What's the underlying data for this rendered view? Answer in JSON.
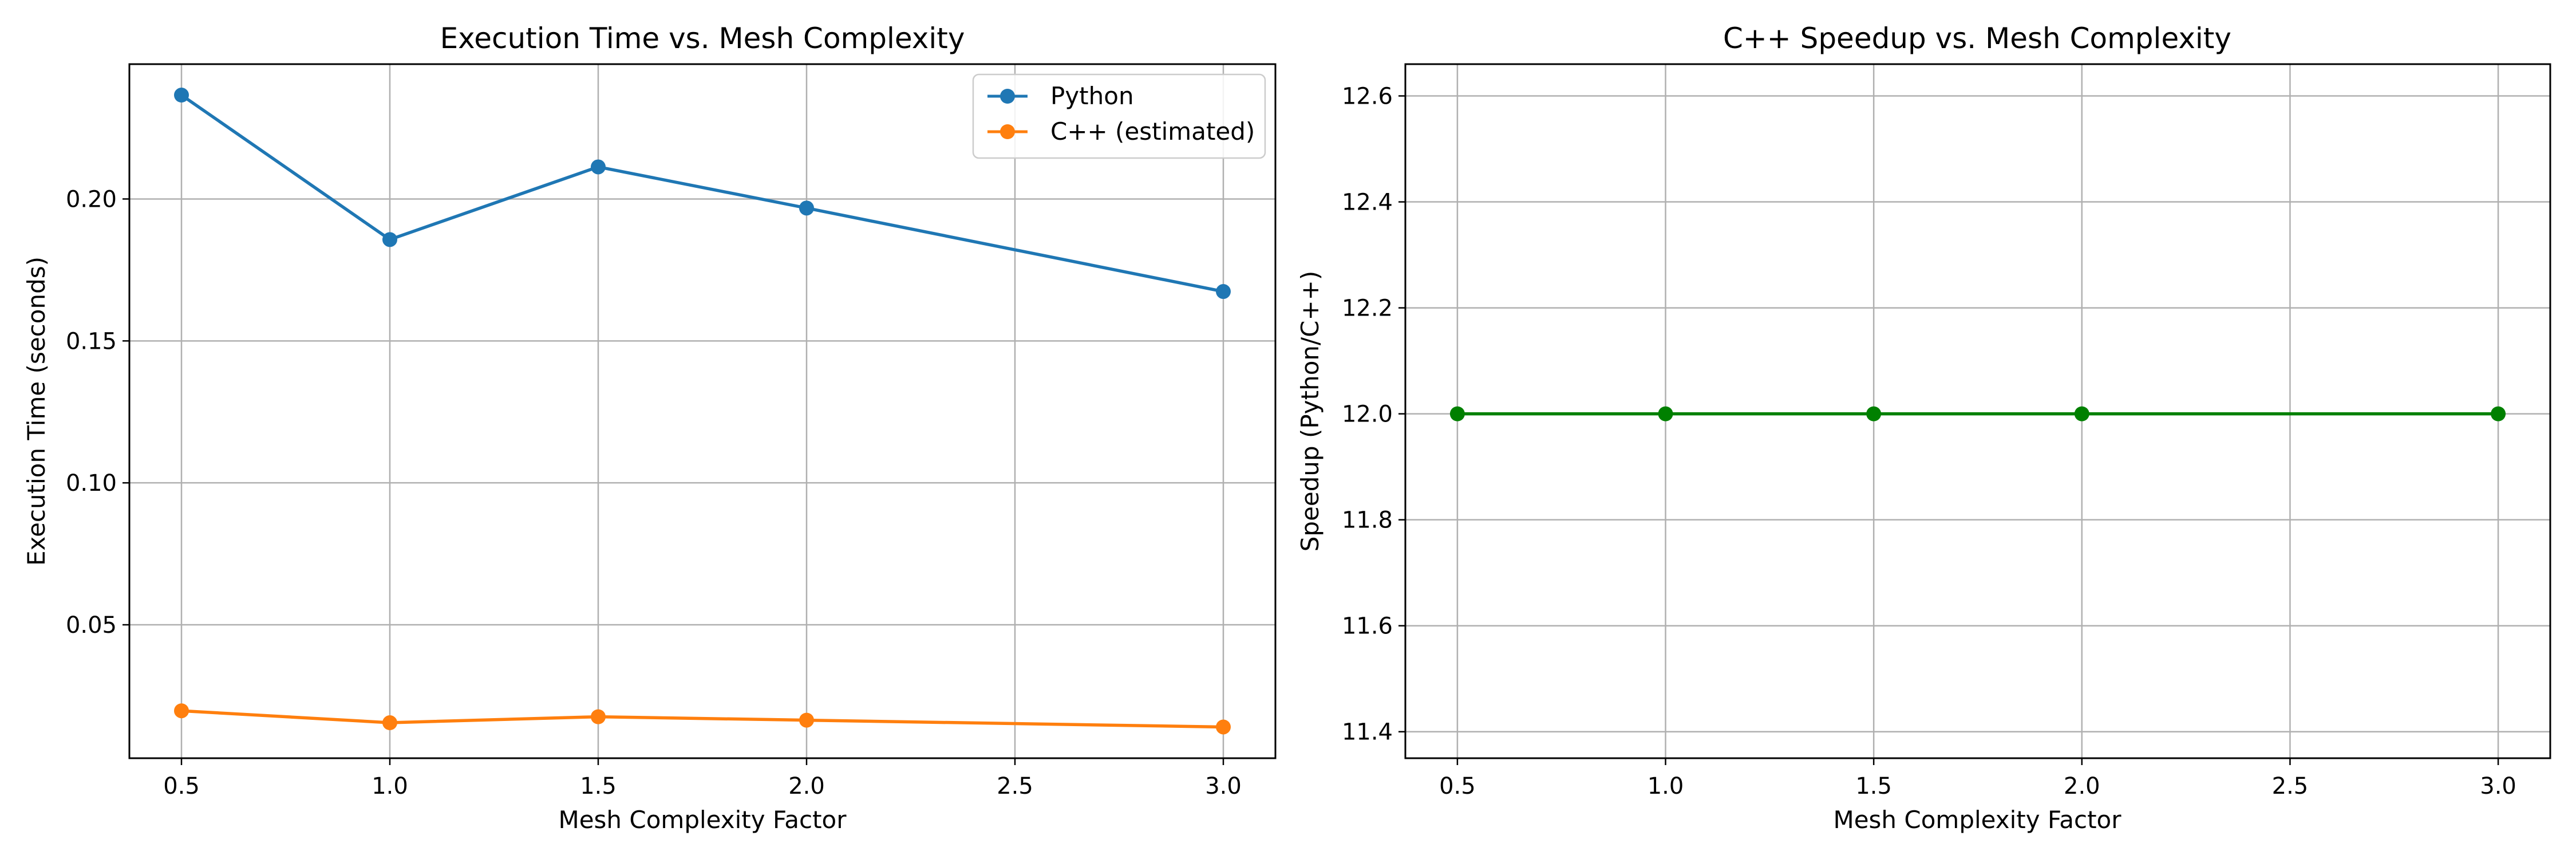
{
  "chart_data": [
    {
      "type": "line",
      "title": "Execution Time vs. Mesh Complexity",
      "xlabel": "Mesh Complexity Factor",
      "ylabel": "Execution Time (seconds)",
      "x": [
        0.5,
        1.0,
        1.5,
        2.0,
        2.5,
        3.0
      ],
      "xticks": [
        "0.5",
        "1.0",
        "1.5",
        "2.0",
        "2.5",
        "3.0"
      ],
      "yticks": [
        0.05,
        0.1,
        0.15,
        0.2
      ],
      "ytick_labels": [
        "0.05",
        "0.10",
        "0.15",
        "0.20"
      ],
      "xlim": [
        0.375,
        3.125
      ],
      "ylim": [
        0.003,
        0.2475
      ],
      "grid": true,
      "legend_position": "top-right",
      "series": [
        {
          "name": "Python",
          "color": "#1f77b4",
          "x": [
            0.5,
            1.0,
            1.5,
            2.0,
            3.0
          ],
          "values": [
            0.2366,
            0.1857,
            0.2113,
            0.1968,
            0.1674
          ]
        },
        {
          "name": "C++ (estimated)",
          "color": "#ff7f0e",
          "x": [
            0.5,
            1.0,
            1.5,
            2.0,
            3.0
          ],
          "values": [
            0.0197,
            0.0155,
            0.0176,
            0.0164,
            0.014
          ]
        }
      ]
    },
    {
      "type": "line",
      "title": "C++ Speedup vs. Mesh Complexity",
      "xlabel": "Mesh Complexity Factor",
      "ylabel": "Speedup (Python/C++)",
      "xticks": [
        "0.5",
        "1.0",
        "1.5",
        "2.0",
        "2.5",
        "3.0"
      ],
      "x": [
        0.5,
        1.0,
        1.5,
        2.0,
        2.5,
        3.0
      ],
      "yticks": [
        11.4,
        11.6,
        11.8,
        12.0,
        12.2,
        12.4,
        12.6
      ],
      "ytick_labels": [
        "11.4",
        "11.6",
        "11.8",
        "12.0",
        "12.2",
        "12.4",
        "12.6"
      ],
      "xlim": [
        0.375,
        3.125
      ],
      "ylim": [
        11.35,
        12.66
      ],
      "grid": true,
      "series": [
        {
          "color": "#008000",
          "x": [
            0.5,
            1.0,
            1.5,
            2.0,
            3.0
          ],
          "values": [
            12.0,
            12.0,
            12.0,
            12.0,
            12.0
          ]
        }
      ]
    }
  ]
}
